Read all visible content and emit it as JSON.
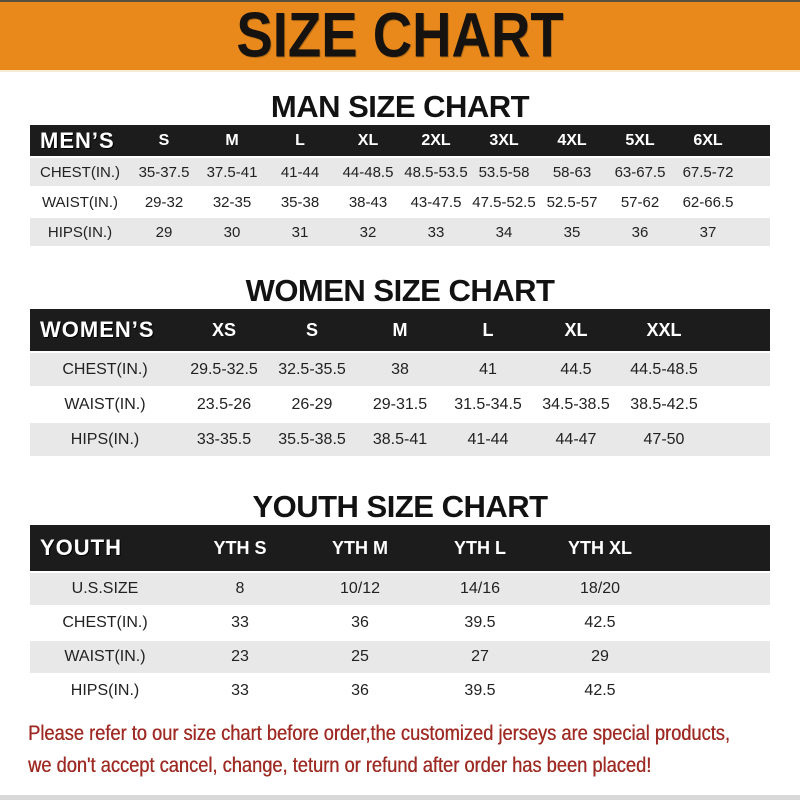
{
  "banner": {
    "title": "SIZE CHART"
  },
  "sections": [
    {
      "heading": "MAN SIZE CHART",
      "table": {
        "label": "MEN’S",
        "columns": [
          "S",
          "M",
          "L",
          "XL",
          "2XL",
          "3XL",
          "4XL",
          "5XL",
          "6XL"
        ],
        "rows": [
          {
            "label": "CHEST(IN.)",
            "values": [
              "35-37.5",
              "37.5-41",
              "41-44",
              "44-48.5",
              "48.5-53.5",
              "53.5-58",
              "58-63",
              "63-67.5",
              "67.5-72"
            ]
          },
          {
            "label": "WAIST(IN.)",
            "values": [
              "29-32",
              "32-35",
              "35-38",
              "38-43",
              "43-47.5",
              "47.5-52.5",
              "52.5-57",
              "57-62",
              "62-66.5"
            ]
          },
          {
            "label": "HIPS(IN.)",
            "values": [
              "29",
              "30",
              "31",
              "32",
              "33",
              "34",
              "35",
              "36",
              "37"
            ]
          }
        ]
      }
    },
    {
      "heading": "WOMEN SIZE CHART",
      "table": {
        "label": "WOMEN’S",
        "columns": [
          "XS",
          "S",
          "M",
          "L",
          "XL",
          "XXL"
        ],
        "rows": [
          {
            "label": "CHEST(IN.)",
            "values": [
              "29.5-32.5",
              "32.5-35.5",
              "38",
              "41",
              "44.5",
              "44.5-48.5"
            ]
          },
          {
            "label": "WAIST(IN.)",
            "values": [
              "23.5-26",
              "26-29",
              "29-31.5",
              "31.5-34.5",
              "34.5-38.5",
              "38.5-42.5"
            ]
          },
          {
            "label": "HIPS(IN.)",
            "values": [
              "33-35.5",
              "35.5-38.5",
              "38.5-41",
              "41-44",
              "44-47",
              "47-50"
            ]
          }
        ]
      }
    },
    {
      "heading": "YOUTH SIZE CHART",
      "table": {
        "label": "YOUTH",
        "columns": [
          "YTH S",
          "YTH M",
          "YTH L",
          "YTH XL"
        ],
        "rows": [
          {
            "label": "U.S.SIZE",
            "values": [
              "8",
              "10/12",
              "14/16",
              "18/20"
            ]
          },
          {
            "label": "CHEST(IN.)",
            "values": [
              "33",
              "36",
              "39.5",
              "42.5"
            ]
          },
          {
            "label": "WAIST(IN.)",
            "values": [
              "23",
              "25",
              "27",
              "29"
            ]
          },
          {
            "label": "HIPS(IN.)",
            "values": [
              "33",
              "36",
              "39.5",
              "42.5"
            ]
          }
        ]
      }
    }
  ],
  "footer": {
    "line1": "Please refer to our size chart before order,the customized jerseys are special products,",
    "line2": "we don't accept cancel, change, teturn or refund after order has been placed!"
  },
  "colors": {
    "banner_bg": "#E9891C",
    "band_bg": "#1C1C1C",
    "stripe": "#E8E8E8",
    "footer_text": "#9E2A23"
  }
}
